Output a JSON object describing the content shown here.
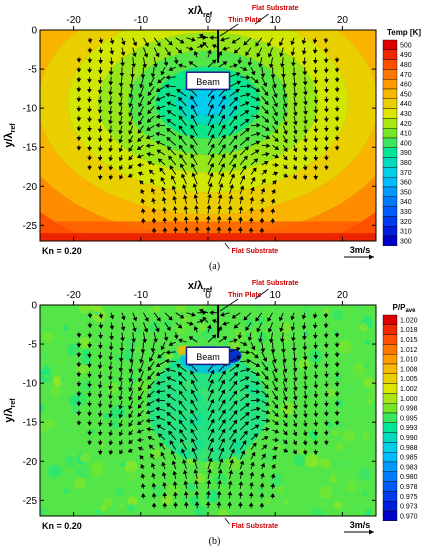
{
  "shared": {
    "xlabel_main": "x/λ",
    "xlabel_sub": "ref",
    "ylabel_main": "y/λ",
    "ylabel_sub": "ref",
    "x_ticks": [
      "-20",
      "-10",
      "0",
      "10",
      "20"
    ],
    "y_ticks": [
      "0",
      "-5",
      "-10",
      "-15",
      "-20",
      "-25"
    ],
    "annotations": {
      "thin_plate": "Thin Plate",
      "flat_substrate_top": "Flat Substrate",
      "flat_substrate_bottom": "Flat Substrate",
      "beam": "Beam",
      "knudsen": "Kn = 0.20",
      "velocity_scale": "3m/s"
    },
    "annotation_color": "#cc0000"
  },
  "chart_data": [
    {
      "type": "heatmap",
      "panel_label": "(a)",
      "title": "",
      "xlabel": "x/λref",
      "ylabel": "y/λref",
      "xlim": [
        -25,
        25
      ],
      "ylim": [
        -27,
        0
      ],
      "field": "Temp [K]",
      "colorbar": {
        "title": "Temp [K]",
        "title_sub": "",
        "levels": [
          "500",
          "490",
          "480",
          "470",
          "460",
          "450",
          "440",
          "430",
          "420",
          "410",
          "400",
          "390",
          "380",
          "370",
          "360",
          "350",
          "340",
          "330",
          "320",
          "310",
          "300"
        ],
        "range": [
          300,
          500
        ]
      },
      "overlay": "velocity vectors",
      "legend_position": "right"
    },
    {
      "type": "heatmap",
      "panel_label": "(b)",
      "title": "",
      "xlabel": "x/λref",
      "ylabel": "y/λref",
      "xlim": [
        -25,
        25
      ],
      "ylim": [
        -27,
        0
      ],
      "field": "P/Pave",
      "colorbar": {
        "title": "P/P",
        "title_sub": "ave",
        "levels": [
          "1.020",
          "1.018",
          "1.015",
          "1.012",
          "1.010",
          "1.008",
          "1.005",
          "1.002",
          "1.000",
          "0.998",
          "0.995",
          "0.993",
          "0.990",
          "0.988",
          "0.985",
          "0.983",
          "0.980",
          "0.978",
          "0.975",
          "0.973",
          "0.970"
        ],
        "range": [
          0.97,
          1.02
        ]
      },
      "overlay": "velocity vectors",
      "legend_position": "right"
    }
  ]
}
